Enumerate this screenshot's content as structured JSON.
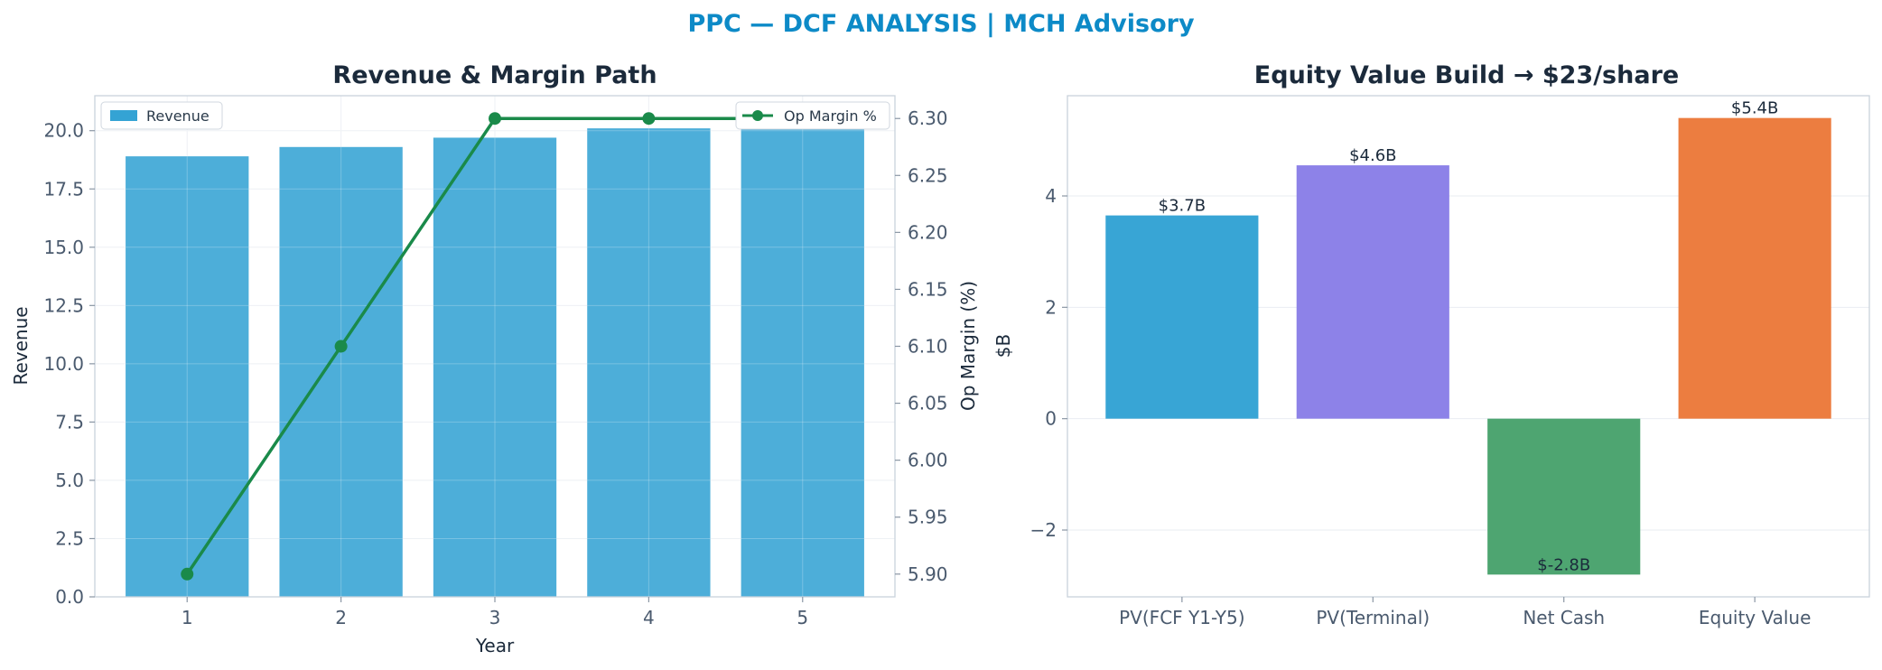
{
  "page": {
    "suptitle": "PPC — DCF ANALYSIS | MCH Advisory",
    "title_color": "#0d8ac7"
  },
  "chart_data": [
    {
      "type": "bar",
      "title": "Revenue & Margin Path",
      "xlabel": "Year",
      "ylabel": "Revenue",
      "y2label": "Op Margin (%)",
      "categories": [
        "1",
        "2",
        "3",
        "4",
        "5"
      ],
      "ylim": [
        0,
        21.5
      ],
      "yticks": [
        "0.0",
        "2.5",
        "5.0",
        "7.5",
        "10.0",
        "12.5",
        "15.0",
        "17.5",
        "20.0"
      ],
      "y2lim": [
        5.88,
        6.32
      ],
      "y2ticks": [
        "5.90",
        "5.95",
        "6.00",
        "6.05",
        "6.10",
        "6.15",
        "6.20",
        "6.25",
        "6.30"
      ],
      "grid": true,
      "series": [
        {
          "name": "Revenue",
          "kind": "bar",
          "axis": "left",
          "color": "#34a3d4",
          "values": [
            18.9,
            19.3,
            19.7,
            20.1,
            20.5
          ]
        },
        {
          "name": "Op Margin %",
          "kind": "line",
          "axis": "right",
          "color": "#1a8a4a",
          "values": [
            5.9,
            6.1,
            6.3,
            6.3,
            6.3
          ]
        }
      ],
      "legend": [
        {
          "label": "Revenue",
          "placement": "upper-left"
        },
        {
          "label": "Op Margin %",
          "placement": "upper-right"
        }
      ]
    },
    {
      "type": "bar",
      "title": "Equity Value Build → $23/share",
      "xlabel": "",
      "ylabel": "$B",
      "categories": [
        "PV(FCF Y1-Y5)",
        "PV(Terminal)",
        "Net Cash",
        "Equity Value"
      ],
      "values": [
        3.65,
        4.55,
        -2.8,
        5.4
      ],
      "labels": [
        "$3.7B",
        "$4.6B",
        "$-2.8B",
        "$5.4B"
      ],
      "colors": [
        "#34a3d4",
        "#8b7fe8",
        "#4aa36e",
        "#ec7a3c"
      ],
      "ylim": [
        -3.2,
        5.8
      ],
      "yticks": [
        "−2",
        "0",
        "2",
        "4"
      ],
      "ytick_values": [
        -2,
        0,
        2,
        4
      ],
      "grid": true
    }
  ]
}
